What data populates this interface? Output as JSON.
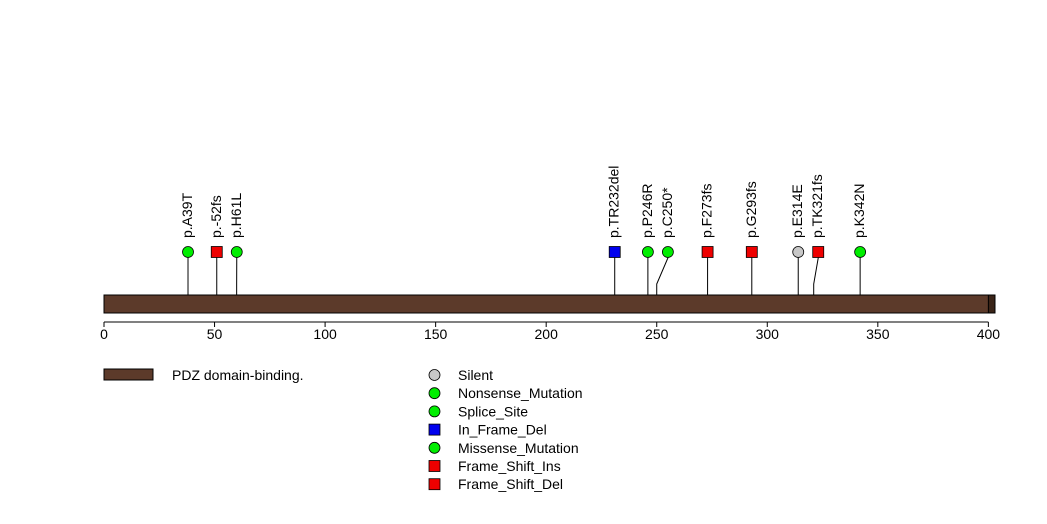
{
  "chart_data": {
    "type": "lollipop",
    "xlim": [
      0,
      403
    ],
    "protein_length": 403,
    "ticks": [
      0,
      50,
      100,
      150,
      200,
      250,
      300,
      350,
      400
    ],
    "domains": [
      {
        "name": "PDZ domain-binding.",
        "start": 400,
        "end": 403,
        "color": "#3a2418"
      }
    ],
    "backbone_color": "#5c3a2a",
    "mutations": [
      {
        "label": "p.A39T",
        "pos": 38,
        "type": "Missense_Mutation"
      },
      {
        "label": "p.-52fs",
        "pos": 51,
        "type": "Frame_Shift_Del"
      },
      {
        "label": "p.H61L",
        "pos": 60,
        "type": "Missense_Mutation"
      },
      {
        "label": "p.TR232del",
        "pos": 231,
        "type": "In_Frame_Del"
      },
      {
        "label": "p.P246R",
        "pos": 246,
        "type": "Missense_Mutation"
      },
      {
        "label": "p.C250*",
        "pos": 250,
        "type": "Nonsense_Mutation"
      },
      {
        "label": "p.F273fs",
        "pos": 273,
        "type": "Frame_Shift_Del"
      },
      {
        "label": "p.G293fs",
        "pos": 293,
        "type": "Frame_Shift_Del"
      },
      {
        "label": "p.E314E",
        "pos": 314,
        "type": "Silent"
      },
      {
        "label": "p.TK321fs",
        "pos": 321,
        "type": "Frame_Shift_Ins"
      },
      {
        "label": "p.K342N",
        "pos": 342,
        "type": "Missense_Mutation"
      }
    ],
    "domain_legend": [
      {
        "label": "PDZ domain-binding.",
        "color": "#5c3a2a"
      }
    ],
    "mutation_legend": [
      {
        "label": "Silent",
        "shape": "circle",
        "color": "#c8c8c8"
      },
      {
        "label": "Nonsense_Mutation",
        "shape": "circle",
        "color": "#00ee00"
      },
      {
        "label": "Splice_Site",
        "shape": "circle",
        "color": "#00ee00"
      },
      {
        "label": "In_Frame_Del",
        "shape": "square",
        "color": "#0000ee"
      },
      {
        "label": "Missense_Mutation",
        "shape": "circle",
        "color": "#00ee00"
      },
      {
        "label": "Frame_Shift_Ins",
        "shape": "square",
        "color": "#ee0000"
      },
      {
        "label": "Frame_Shift_Del",
        "shape": "square",
        "color": "#ee0000"
      }
    ]
  }
}
